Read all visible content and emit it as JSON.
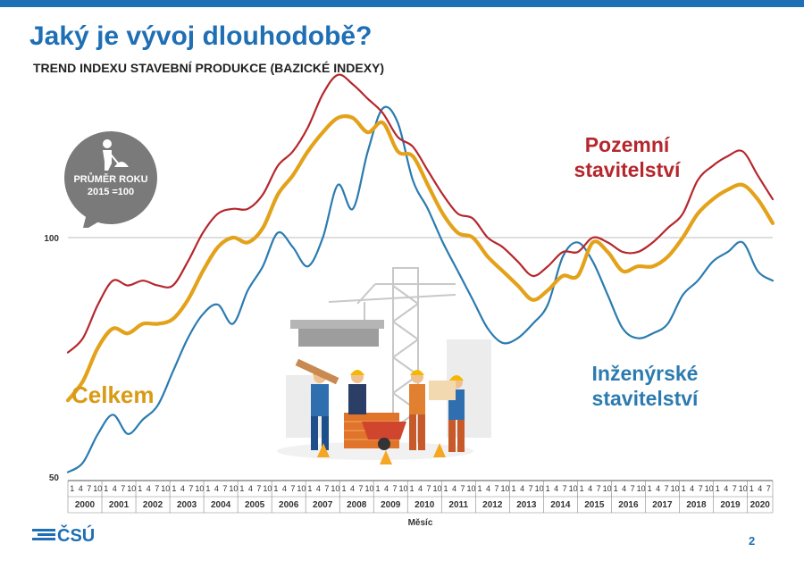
{
  "header": {
    "title": "Jaký je vývoj dlouhodobě?",
    "subtitle": "TREND INDEXU STAVEBNÍ PRODUKCE (BAZICKÉ INDEXY)"
  },
  "badge": {
    "line1": "PRŮMĚR ROKU",
    "line2": "2015 =100",
    "icon": "worker-shovel-icon"
  },
  "labels": {
    "pozemni_1": "Pozemní",
    "pozemni_2": "stavitelství",
    "inzenyrske_1": "Inženýrské",
    "inzenyrske_2": "stavitelství",
    "celkem": "Celkem"
  },
  "footer": {
    "logo": "ČSÚ",
    "page": "2"
  },
  "colors": {
    "pozemni": "#b5272d",
    "celkem": "#e3a21a",
    "inzenyrske": "#2b7bb0",
    "accent": "#1f6fb5"
  },
  "chart_data": {
    "type": "line",
    "title": "TREND INDEXU STAVEBNÍ PRODUKCE (BAZICKÉ INDEXY)",
    "xlabel": "Měsíc",
    "ylabel": "",
    "y_ticks": [
      50,
      100
    ],
    "ylim": [
      50,
      150
    ],
    "reference_line": 100,
    "month_ticks": [
      "1",
      "4",
      "7",
      "10"
    ],
    "years": [
      "2000",
      "2001",
      "2002",
      "2003",
      "2004",
      "2005",
      "2006",
      "2007",
      "2008",
      "2009",
      "2010",
      "2011",
      "2012",
      "2013",
      "2014",
      "2015",
      "2016",
      "2017",
      "2018",
      "2019",
      "2020"
    ],
    "last_year_month_ticks": [
      "1",
      "4",
      "7"
    ],
    "x_start": "2000-01",
    "x_step": "quarter",
    "series": [
      {
        "name": "Pozemní stavitelství",
        "key": "pozemni",
        "values": [
          76,
          79,
          86,
          91,
          90,
          91,
          90,
          90,
          95,
          101,
          105,
          106,
          106,
          109,
          115,
          118,
          123,
          130,
          134,
          132,
          129,
          126,
          121,
          119,
          114,
          109,
          105,
          104,
          100,
          98,
          95,
          92,
          94,
          97,
          97,
          100,
          99,
          97,
          97,
          99,
          102,
          105,
          112,
          115,
          117,
          118,
          113,
          108
        ]
      },
      {
        "name": "Celkem",
        "key": "celkem",
        "values": [
          66,
          70,
          77,
          81,
          80,
          82,
          82,
          83,
          87,
          93,
          98,
          100,
          99,
          102,
          109,
          113,
          118,
          122,
          125,
          125,
          122,
          124,
          118,
          117,
          111,
          105,
          101,
          100,
          96,
          93,
          90,
          87,
          89,
          92,
          92,
          99,
          97,
          93,
          94,
          94,
          96,
          100,
          105,
          108,
          110,
          111,
          108,
          103
        ]
      },
      {
        "name": "Inženýrské stavitelství",
        "key": "inzenyrske",
        "values": [
          51,
          53,
          59,
          63,
          59,
          62,
          65,
          72,
          79,
          84,
          86,
          82,
          89,
          94,
          101,
          98,
          94,
          100,
          111,
          106,
          118,
          127,
          124,
          112,
          106,
          99,
          93,
          87,
          81,
          78,
          79,
          82,
          86,
          96,
          99,
          95,
          88,
          81,
          79,
          80,
          82,
          88,
          91,
          95,
          97,
          99,
          93,
          91
        ]
      }
    ]
  }
}
